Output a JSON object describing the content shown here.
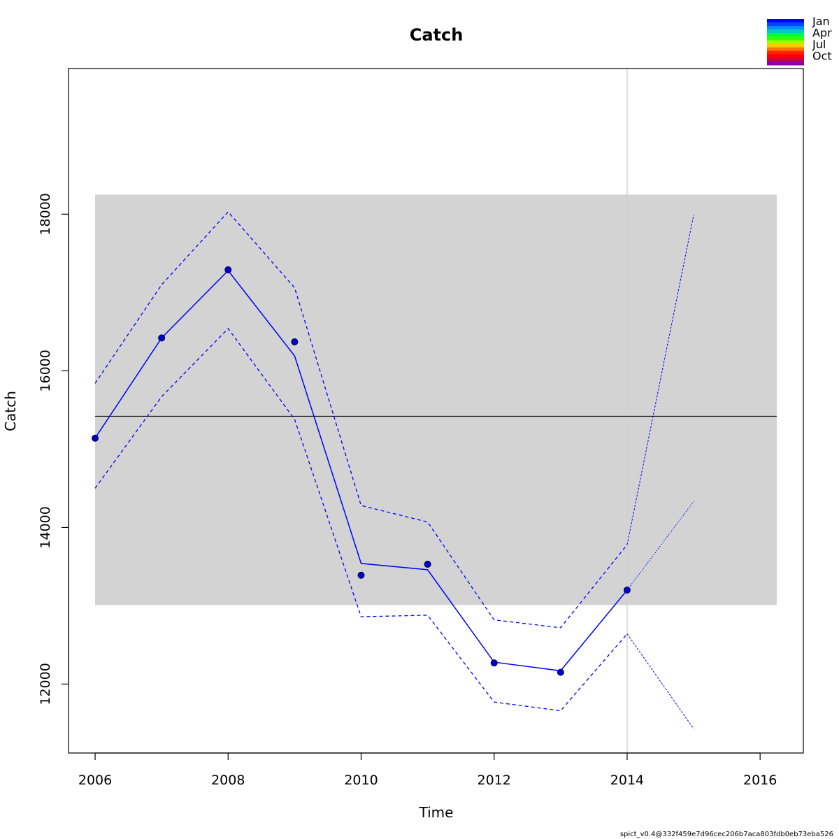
{
  "chart_data": {
    "type": "line",
    "title": "Catch",
    "xlabel": "Time",
    "ylabel": "Catch",
    "xlim": [
      2005.6,
      2016.65
    ],
    "ylim": [
      11120,
      19860
    ],
    "x_ticks": [
      2006,
      2008,
      2010,
      2012,
      2014,
      2016
    ],
    "y_ticks": [
      12000,
      14000,
      16000,
      18000
    ],
    "grid": false,
    "observed": {
      "x": [
        2006,
        2007,
        2008,
        2009,
        2010,
        2011,
        2012,
        2013,
        2014
      ],
      "y": [
        15140,
        16420,
        17290,
        16370,
        13390,
        13530,
        12270,
        12150,
        13200
      ]
    },
    "predicted": {
      "x": [
        2006,
        2007,
        2008,
        2009,
        2010,
        2011,
        2012,
        2013,
        2014
      ],
      "y": [
        15140,
        16420,
        17280,
        16190,
        13540,
        13460,
        12280,
        12170,
        13200
      ]
    },
    "upper_ci": {
      "x": [
        2006,
        2007,
        2008,
        2009,
        2010,
        2011,
        2012,
        2013,
        2014
      ],
      "y": [
        15840,
        17100,
        18030,
        17060,
        14280,
        14070,
        12820,
        12720,
        13780
      ]
    },
    "lower_ci": {
      "x": [
        2006,
        2007,
        2008,
        2009,
        2010,
        2011,
        2012,
        2013,
        2014
      ],
      "y": [
        14500,
        15670,
        16540,
        15380,
        12860,
        12880,
        11770,
        11660,
        12640
      ]
    },
    "forecast": {
      "x": [
        2014,
        2015
      ],
      "y": [
        13200,
        14330
      ],
      "upper": [
        13780,
        17990
      ],
      "lower": [
        12640,
        11430
      ]
    },
    "reference_band": {
      "x": [
        2006,
        2016.25
      ],
      "y": [
        13010,
        18250
      ]
    },
    "reference_line": {
      "x": [
        2006,
        2016.25
      ],
      "y": 15420
    },
    "vertical_line": 2014,
    "colors": {
      "series": "#0000ff",
      "point_fill": "#0000cc",
      "band": "#d3d3d3",
      "reference_line": "#000000",
      "vertical_line": "#d3d3d3"
    },
    "legend": {
      "position": "top-right",
      "labels": [
        "Jan",
        "Apr",
        "Jul",
        "Oct"
      ],
      "colors": [
        "#0000ff",
        "#0048ff",
        "#0090ff",
        "#00ccbb",
        "#00ff44",
        "#33ff00",
        "#99ff00",
        "#ffcc00",
        "#ff7700",
        "#ff2200",
        "#ff0000",
        "#cc0044",
        "#8800aa"
      ]
    }
  },
  "footer_text": "spict_v0.4@332f459e7d96cec206b7aca803fdb0eb73eba526"
}
